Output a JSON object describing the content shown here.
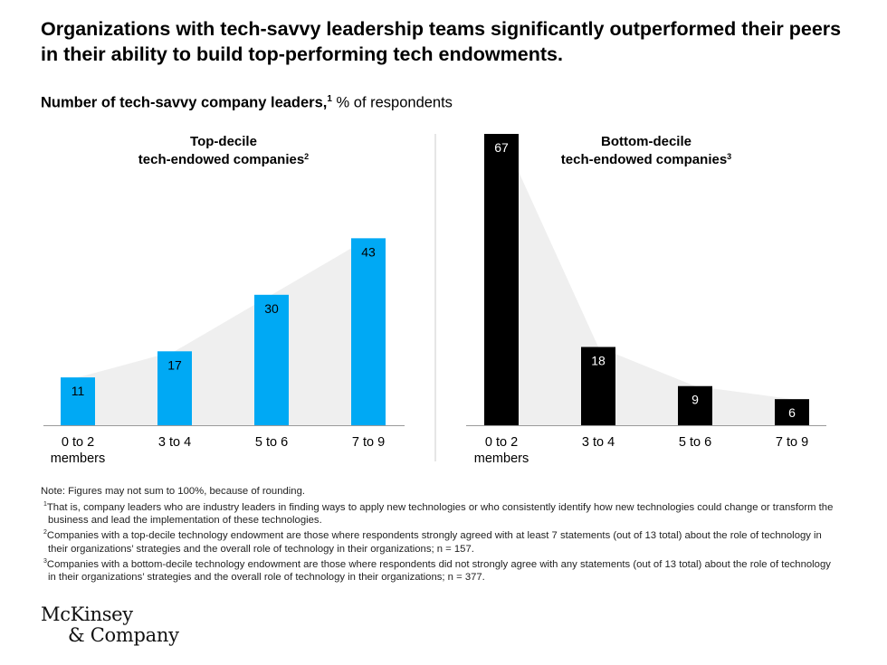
{
  "title": "Organizations with tech-savvy leadership teams significantly outperformed their peers in their ability to build top-performing tech endowments.",
  "subtitle": {
    "bold": "Number of tech-savvy company leaders,",
    "sup": "1",
    "rest": " % of respondents"
  },
  "chart_data": [
    {
      "type": "bar",
      "title": "Top-decile tech-endowed companies",
      "title_lines": [
        "Top-decile",
        "tech-endowed companies"
      ],
      "title_sup": "2",
      "categories": [
        "0 to 2 members",
        "3 to 4",
        "5 to 6",
        "7 to 9"
      ],
      "category_lines": [
        [
          "0 to 2",
          "members"
        ],
        [
          "3 to 4"
        ],
        [
          "5 to 6"
        ],
        [
          "7 to 9"
        ]
      ],
      "values": [
        11,
        17,
        30,
        43
      ],
      "ylim": [
        0,
        67
      ],
      "color": "#00A9F4",
      "label_color": "#000000",
      "xlabel": "",
      "ylabel": ""
    },
    {
      "type": "bar",
      "title": "Bottom-decile tech-endowed companies",
      "title_lines": [
        "Bottom-decile",
        "tech-endowed companies"
      ],
      "title_sup": "3",
      "categories": [
        "0 to 2 members",
        "3 to 4",
        "5 to 6",
        "7 to 9"
      ],
      "category_lines": [
        [
          "0 to 2",
          "members"
        ],
        [
          "3 to 4"
        ],
        [
          "5 to 6"
        ],
        [
          "7 to 9"
        ]
      ],
      "values": [
        67,
        18,
        9,
        6
      ],
      "ylim": [
        0,
        67
      ],
      "color": "#000000",
      "label_color": "#ffffff",
      "xlabel": "",
      "ylabel": ""
    }
  ],
  "notes": {
    "note": "Note: Figures may not sum to 100%, because of rounding.",
    "footnotes": [
      {
        "num": "1",
        "text": "That is, company leaders who are industry leaders in finding ways to apply new technologies or who consistently identify how new technologies could change or transform the business and lead the implementation of these technologies."
      },
      {
        "num": "2",
        "text": "Companies with a top-decile technology endowment are those where respondents strongly agreed with at least 7 statements (out of 13 total) about the role of technology in their organizations’ strategies and the overall role of technology in their organizations; n = 157."
      },
      {
        "num": "3",
        "text": "Companies with a bottom-decile technology endowment are those where respondents did not strongly agree with any statements (out of 13 total) about the role of technology in their organizations’ strategies and the overall role of technology in their organizations; n = 377."
      }
    ]
  },
  "logo": {
    "line1": "McKinsey",
    "line2": "& Company"
  },
  "colors": {
    "area": "#EFEFEF",
    "divider": "#CCCCCC",
    "axis": "#9A9A9A"
  }
}
